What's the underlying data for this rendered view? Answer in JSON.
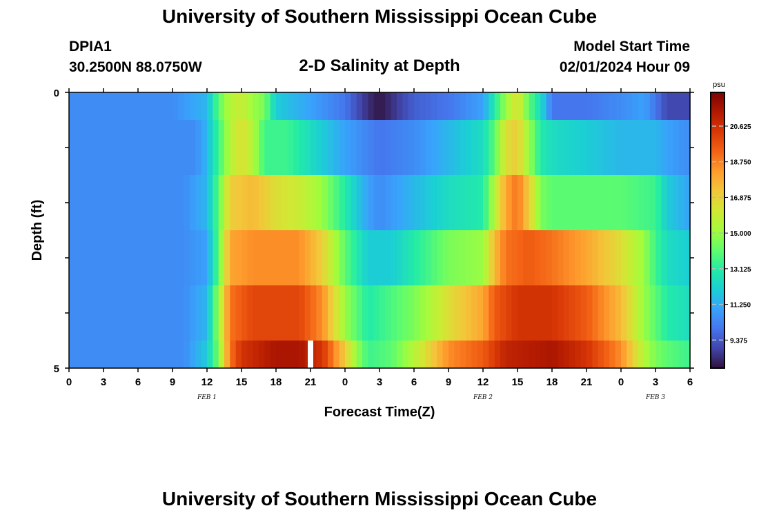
{
  "header": {
    "title": "University of Southern Mississippi Ocean Cube",
    "station_id": "DPIA1",
    "station_coords": "30.2500N  88.0750W",
    "plot_title": "2-D Salinity at Depth",
    "model_start_label": "Model Start Time",
    "model_start_value": "02/01/2024 Hour 09"
  },
  "footer": {
    "title": "University of Southern Mississippi Ocean Cube"
  },
  "chart_data": {
    "type": "heatmap",
    "title": "2-D Salinity at Depth",
    "xlabel": "Forecast Time(Z)",
    "ylabel": "Depth (ft)",
    "x_tick_labels": [
      "0",
      "3",
      "6",
      "9",
      "12",
      "15",
      "18",
      "21",
      "0",
      "3",
      "6",
      "9",
      "12",
      "15",
      "18",
      "21",
      "0",
      "3",
      "6"
    ],
    "x_range_hours": [
      0,
      54
    ],
    "date_labels": [
      {
        "label": "FEB 1",
        "hour": 12
      },
      {
        "label": "FEB 2",
        "hour": 36
      },
      {
        "label": "FEB 3",
        "hour": 51
      }
    ],
    "y_tick_labels": [
      "0",
      "5"
    ],
    "ylim": [
      0,
      5
    ],
    "colorbar": {
      "unit": "psu",
      "tick_labels": [
        "20.625",
        "18.750",
        "16.875",
        "15.000",
        "13.125",
        "11.250",
        "9.375"
      ],
      "tick_values": [
        20.625,
        18.75,
        16.875,
        15.0,
        13.125,
        11.25,
        9.375
      ],
      "range": [
        7.9,
        22.4
      ]
    },
    "missing_data": {
      "hour": 21,
      "layer": 5
    },
    "layers": [
      {
        "layer": 0,
        "knots": [
          [
            0,
            10.5
          ],
          [
            9,
            10.5
          ],
          [
            12,
            11.5
          ],
          [
            13,
            14
          ],
          [
            14,
            15.5
          ],
          [
            15,
            16
          ],
          [
            16,
            15
          ],
          [
            17,
            14.5
          ],
          [
            18,
            12
          ],
          [
            21,
            11
          ],
          [
            24,
            10
          ],
          [
            25,
            9.2
          ],
          [
            26,
            8.5
          ],
          [
            27,
            8
          ],
          [
            28,
            8.5
          ],
          [
            30,
            9.5
          ],
          [
            33,
            10
          ],
          [
            36,
            11
          ],
          [
            37,
            13
          ],
          [
            38,
            15
          ],
          [
            39,
            16.5
          ],
          [
            40,
            14
          ],
          [
            41,
            12.5
          ],
          [
            42,
            10
          ],
          [
            45,
            10
          ],
          [
            48,
            10.5
          ],
          [
            50,
            11
          ],
          [
            51,
            10
          ],
          [
            52,
            9
          ],
          [
            54,
            9
          ]
        ]
      },
      {
        "layer": 1,
        "knots": [
          [
            0,
            10.5
          ],
          [
            11,
            10.5
          ],
          [
            12,
            11.5
          ],
          [
            13,
            13.5
          ],
          [
            14,
            15.5
          ],
          [
            15,
            16.5
          ],
          [
            16,
            15.5
          ],
          [
            17,
            13.5
          ],
          [
            19,
            13.5
          ],
          [
            21,
            12.5
          ],
          [
            24,
            11
          ],
          [
            27,
            10
          ],
          [
            30,
            10.5
          ],
          [
            33,
            11.5
          ],
          [
            36,
            12.5
          ],
          [
            37,
            14
          ],
          [
            38,
            16.5
          ],
          [
            39,
            17
          ],
          [
            40,
            15
          ],
          [
            41,
            13
          ],
          [
            42,
            12.5
          ],
          [
            45,
            12
          ],
          [
            48,
            11.5
          ],
          [
            51,
            11.5
          ],
          [
            52,
            11
          ],
          [
            54,
            10.5
          ]
        ]
      },
      {
        "layer": 2,
        "knots": [
          [
            0,
            10.5
          ],
          [
            10,
            10.5
          ],
          [
            12,
            11.5
          ],
          [
            13,
            14
          ],
          [
            14,
            17
          ],
          [
            16,
            17.5
          ],
          [
            18,
            16.5
          ],
          [
            20,
            16
          ],
          [
            22,
            15
          ],
          [
            24,
            13
          ],
          [
            26,
            11
          ],
          [
            27,
            10.5
          ],
          [
            30,
            11.5
          ],
          [
            33,
            12.5
          ],
          [
            36,
            13
          ],
          [
            37,
            15.5
          ],
          [
            38,
            18
          ],
          [
            39,
            19
          ],
          [
            40,
            17
          ],
          [
            41,
            14.5
          ],
          [
            42,
            14
          ],
          [
            45,
            14
          ],
          [
            48,
            14
          ],
          [
            51,
            13.5
          ],
          [
            52,
            12
          ],
          [
            54,
            11
          ]
        ]
      },
      {
        "layer": 3,
        "knots": [
          [
            0,
            10.5
          ],
          [
            10,
            10.5
          ],
          [
            12,
            11
          ],
          [
            13,
            14
          ],
          [
            14,
            18
          ],
          [
            16,
            18.5
          ],
          [
            20,
            18.5
          ],
          [
            22,
            17
          ],
          [
            24,
            14
          ],
          [
            26,
            12
          ],
          [
            28,
            12
          ],
          [
            30,
            13
          ],
          [
            33,
            14.5
          ],
          [
            36,
            15
          ],
          [
            37,
            17.5
          ],
          [
            38,
            19
          ],
          [
            40,
            19.5
          ],
          [
            42,
            19
          ],
          [
            45,
            18
          ],
          [
            48,
            16.5
          ],
          [
            50,
            15
          ],
          [
            51,
            13.5
          ],
          [
            52,
            12.5
          ],
          [
            54,
            12
          ]
        ]
      },
      {
        "layer": 4,
        "knots": [
          [
            0,
            10.5
          ],
          [
            10,
            10.5
          ],
          [
            12,
            11.5
          ],
          [
            13,
            15
          ],
          [
            14,
            19
          ],
          [
            16,
            20
          ],
          [
            20,
            20
          ],
          [
            22,
            18.5
          ],
          [
            24,
            15
          ],
          [
            26,
            13
          ],
          [
            30,
            14.5
          ],
          [
            33,
            16.5
          ],
          [
            36,
            18
          ],
          [
            37,
            19.5
          ],
          [
            39,
            20.5
          ],
          [
            42,
            20.5
          ],
          [
            45,
            19.5
          ],
          [
            48,
            17.5
          ],
          [
            50,
            15
          ],
          [
            51,
            14
          ],
          [
            52,
            13
          ],
          [
            54,
            12.5
          ]
        ]
      },
      {
        "layer": 5,
        "knots": [
          [
            0,
            10.5
          ],
          [
            10,
            10.5
          ],
          [
            12,
            12
          ],
          [
            13,
            14.5
          ],
          [
            14,
            19
          ],
          [
            15,
            20.5
          ],
          [
            18,
            21.5
          ],
          [
            20,
            21.5
          ],
          [
            22,
            20.5
          ],
          [
            24,
            17
          ],
          [
            25,
            15
          ],
          [
            26,
            13.5
          ],
          [
            28,
            14
          ],
          [
            30,
            15.5
          ],
          [
            33,
            18.5
          ],
          [
            36,
            19.5
          ],
          [
            38,
            21
          ],
          [
            42,
            21.5
          ],
          [
            45,
            20.5
          ],
          [
            48,
            18.5
          ],
          [
            50,
            15.5
          ],
          [
            51,
            14.5
          ],
          [
            52,
            14
          ],
          [
            54,
            13.5
          ]
        ]
      }
    ]
  },
  "colors": {
    "colormap": [
      "#30123b",
      "#4145ab",
      "#4675ed",
      "#39a2fc",
      "#1bcfd4",
      "#24eca6",
      "#61fc6c",
      "#a4fc3b",
      "#d1e834",
      "#f3c63a",
      "#fe9b2d",
      "#f36315",
      "#d93806",
      "#b11901",
      "#7a0403"
    ]
  }
}
